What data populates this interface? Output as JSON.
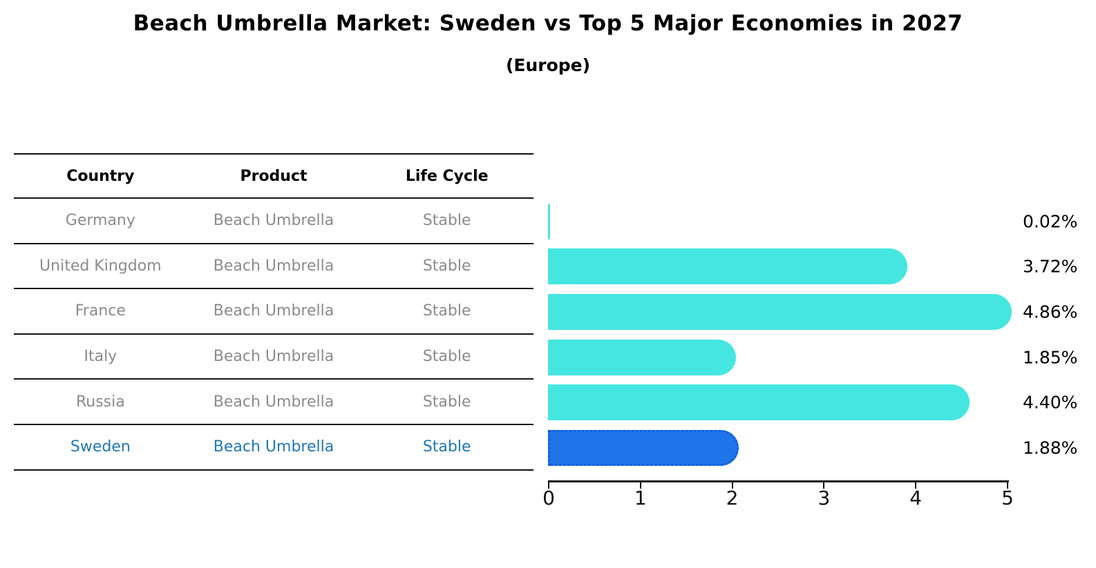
{
  "title": "Beach Umbrella Market: Sweden vs Top 5 Major Economies in 2027",
  "subtitle": "(Europe)",
  "table": {
    "headers": [
      "Country",
      "Product",
      "Life Cycle"
    ],
    "rows": [
      {
        "country": "Germany",
        "product": "Beach Umbrella",
        "life_cycle": "Stable",
        "highlighted": false
      },
      {
        "country": "United Kingdom",
        "product": "Beach Umbrella",
        "life_cycle": "Stable",
        "highlighted": false
      },
      {
        "country": "France",
        "product": "Beach Umbrella",
        "life_cycle": "Stable",
        "highlighted": false
      },
      {
        "country": "Italy",
        "product": "Beach Umbrella",
        "life_cycle": "Stable",
        "highlighted": false
      },
      {
        "country": "Russia",
        "product": "Beach Umbrella",
        "life_cycle": "Stable",
        "highlighted": false
      },
      {
        "country": "Sweden",
        "product": "Beach Umbrella",
        "life_cycle": "Stable",
        "highlighted": true
      }
    ]
  },
  "chart_data": {
    "type": "bar",
    "orientation": "horizontal",
    "title": "Beach Umbrella Market: Sweden vs Top 5 Major Economies in 2027",
    "subtitle": "(Europe)",
    "categories": [
      "Germany",
      "United Kingdom",
      "France",
      "Italy",
      "Russia",
      "Sweden"
    ],
    "values": [
      0.02,
      3.72,
      4.86,
      1.85,
      4.4,
      1.88
    ],
    "value_labels": [
      "0.02%",
      "3.72%",
      "4.86%",
      "1.85%",
      "4.40%",
      "1.88%"
    ],
    "xlim": [
      0,
      5
    ],
    "x_ticks": [
      "0",
      "1",
      "2",
      "3",
      "4",
      "5"
    ],
    "grid": false,
    "legend_position": "none",
    "bar_color": "#45E6E0",
    "highlight_color": "#1E74E8",
    "highlight_border_color": "#0D5FD6",
    "highlight_index": 5
  },
  "colors": {
    "background": "#FFFFFF",
    "title_text": "#000000",
    "table_header_text": "#000000",
    "table_row_text": "#8B8B8B",
    "highlight_row_text": "#1F77B4",
    "divider": "#111111",
    "axis": "#111111",
    "value_label_text": "#000000"
  }
}
